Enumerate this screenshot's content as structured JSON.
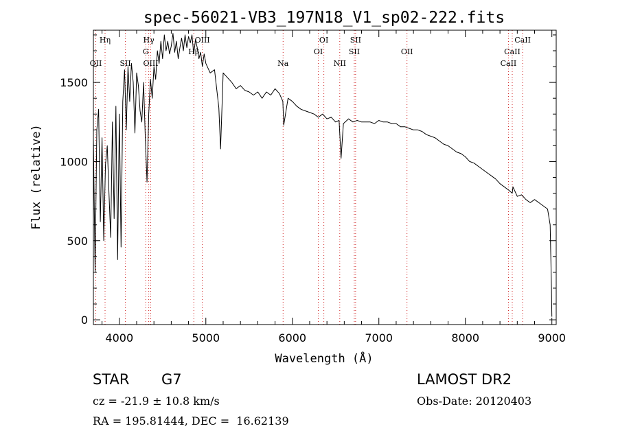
{
  "chart_data": {
    "type": "line",
    "title": "spec-56021-VB3_197N18_V1_sp02-222.fits",
    "xlabel": "Wavelength (Å)",
    "ylabel": "Flux (relative)",
    "xlim": [
      3700,
      9050
    ],
    "ylim": [
      -30,
      1830
    ],
    "x_ticks": [
      4000,
      5000,
      6000,
      7000,
      8000,
      9000
    ],
    "y_ticks": [
      0,
      500,
      1000,
      1500
    ],
    "grid": false,
    "series": [
      {
        "x": [
          3700,
          3720,
          3740,
          3760,
          3780,
          3800,
          3820,
          3840,
          3860,
          3880,
          3900,
          3920,
          3940,
          3960,
          3980,
          4000,
          4020,
          4040,
          4060,
          4080,
          4100,
          4120,
          4140,
          4160,
          4180,
          4200,
          4220,
          4240,
          4260,
          4280,
          4300,
          4320,
          4340,
          4360,
          4380,
          4400,
          4420,
          4440,
          4460,
          4480,
          4500,
          4520,
          4540,
          4560,
          4580,
          4600,
          4620,
          4640,
          4660,
          4680,
          4700,
          4720,
          4740,
          4760,
          4780,
          4800,
          4820,
          4840,
          4860,
          4880,
          4900,
          4920,
          4940,
          4960,
          4980,
          5000,
          5050,
          5100,
          5150,
          5170,
          5200,
          5250,
          5300,
          5350,
          5400,
          5450,
          5500,
          5550,
          5600,
          5650,
          5700,
          5750,
          5800,
          5850,
          5890,
          5900,
          5950,
          6000,
          6050,
          6100,
          6150,
          6200,
          6250,
          6300,
          6350,
          6400,
          6450,
          6500,
          6540,
          6563,
          6590,
          6650,
          6700,
          6750,
          6800,
          6850,
          6900,
          6950,
          7000,
          7050,
          7100,
          7150,
          7200,
          7250,
          7300,
          7350,
          7400,
          7450,
          7500,
          7550,
          7600,
          7650,
          7700,
          7750,
          7800,
          7850,
          7900,
          7950,
          8000,
          8050,
          8100,
          8150,
          8200,
          8250,
          8300,
          8350,
          8400,
          8450,
          8500,
          8542,
          8550,
          8600,
          8650,
          8700,
          8750,
          8800,
          8850,
          8900,
          8950,
          8980,
          8995,
          9000
        ],
        "y": [
          1150,
          300,
          1200,
          1330,
          620,
          1150,
          500,
          980,
          1100,
          800,
          520,
          1250,
          640,
          1350,
          380,
          1300,
          460,
          1380,
          1580,
          1200,
          1600,
          1380,
          1620,
          1500,
          1180,
          1560,
          1480,
          1320,
          1250,
          1500,
          1150,
          870,
          1300,
          1520,
          1400,
          1600,
          1520,
          1700,
          1620,
          1760,
          1650,
          1800,
          1700,
          1760,
          1680,
          1730,
          1810,
          1690,
          1760,
          1650,
          1720,
          1780,
          1700,
          1800,
          1720,
          1790,
          1750,
          1800,
          1680,
          1770,
          1720,
          1650,
          1690,
          1600,
          1680,
          1620,
          1560,
          1580,
          1340,
          1080,
          1560,
          1530,
          1500,
          1460,
          1480,
          1450,
          1440,
          1420,
          1440,
          1400,
          1440,
          1420,
          1460,
          1430,
          1380,
          1230,
          1400,
          1380,
          1350,
          1330,
          1320,
          1310,
          1300,
          1280,
          1300,
          1270,
          1280,
          1250,
          1260,
          1020,
          1240,
          1270,
          1250,
          1260,
          1250,
          1250,
          1250,
          1240,
          1260,
          1250,
          1250,
          1240,
          1240,
          1220,
          1220,
          1210,
          1200,
          1200,
          1190,
          1170,
          1160,
          1150,
          1130,
          1110,
          1100,
          1080,
          1060,
          1050,
          1030,
          1000,
          990,
          970,
          950,
          930,
          910,
          890,
          860,
          840,
          820,
          800,
          840,
          780,
          790,
          760,
          740,
          760,
          740,
          720,
          700,
          600,
          200,
          20
        ]
      }
    ],
    "line_annotations": [
      {
        "label": "Hη",
        "x": 3835,
        "level": 0
      },
      {
        "label": "OII",
        "x": 3728,
        "level": 2
      },
      {
        "label": "SII",
        "x": 4070,
        "level": 2
      },
      {
        "label": "Hγ",
        "x": 4340,
        "level": 0
      },
      {
        "label": "G",
        "x": 4305,
        "level": 1
      },
      {
        "label": "OIII",
        "x": 4363,
        "level": 2
      },
      {
        "label": "OIII",
        "x": 4959,
        "level": 0
      },
      {
        "label": "Hβ",
        "x": 4861,
        "level": 1
      },
      {
        "label": "Na",
        "x": 5893,
        "level": 2
      },
      {
        "label": "OI",
        "x": 6364,
        "level": 0
      },
      {
        "label": "OI",
        "x": 6300,
        "level": 1
      },
      {
        "label": "NII",
        "x": 6548,
        "level": 2
      },
      {
        "label": "SII",
        "x": 6731,
        "level": 0
      },
      {
        "label": "SII",
        "x": 6716,
        "level": 1
      },
      {
        "label": "OII",
        "x": 7325,
        "level": 1
      },
      {
        "label": "CaII",
        "x": 8662,
        "level": 0
      },
      {
        "label": "CaII",
        "x": 8542,
        "level": 1
      },
      {
        "label": "CaII",
        "x": 8498,
        "level": 2
      }
    ]
  },
  "info": {
    "object_class": "STAR",
    "subclass": "G7",
    "survey": "LAMOST DR2",
    "cz": "cz = -21.9 ± 10.8 km/s",
    "obs_date": "Obs-Date: 20120403",
    "coords": "RA = 195.81444, DEC =  16.62139"
  }
}
